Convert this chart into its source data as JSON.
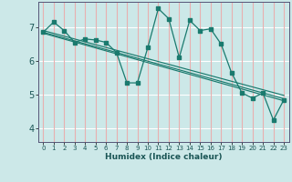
{
  "xlabel": "Humidex (Indice chaleur)",
  "bg_color": "#cce8e8",
  "vgrid_color": "#e8b0b0",
  "hgrid_color": "#ffffff",
  "line_color": "#1a7a6e",
  "xlim": [
    -0.5,
    23.5
  ],
  "ylim": [
    3.6,
    7.75
  ],
  "yticks": [
    4,
    5,
    6,
    7
  ],
  "xticks": [
    0,
    1,
    2,
    3,
    4,
    5,
    6,
    7,
    8,
    9,
    10,
    11,
    12,
    13,
    14,
    15,
    16,
    17,
    18,
    19,
    20,
    21,
    22,
    23
  ],
  "main_x": [
    0,
    1,
    2,
    3,
    4,
    5,
    6,
    7,
    8,
    9,
    10,
    11,
    12,
    13,
    14,
    15,
    16,
    17,
    18,
    19,
    20,
    21,
    22,
    23
  ],
  "main_y": [
    6.85,
    7.15,
    6.9,
    6.55,
    6.65,
    6.62,
    6.55,
    6.25,
    5.35,
    5.35,
    6.4,
    7.55,
    7.25,
    6.1,
    7.2,
    6.9,
    6.95,
    6.5,
    5.65,
    5.05,
    4.9,
    5.05,
    4.25,
    4.85
  ],
  "line1_x": [
    0,
    23
  ],
  "line1_y": [
    6.85,
    4.88
  ],
  "line2_x": [
    0,
    23
  ],
  "line2_y": [
    6.82,
    4.82
  ],
  "line3_x": [
    0,
    23
  ],
  "line3_y": [
    6.9,
    4.98
  ]
}
